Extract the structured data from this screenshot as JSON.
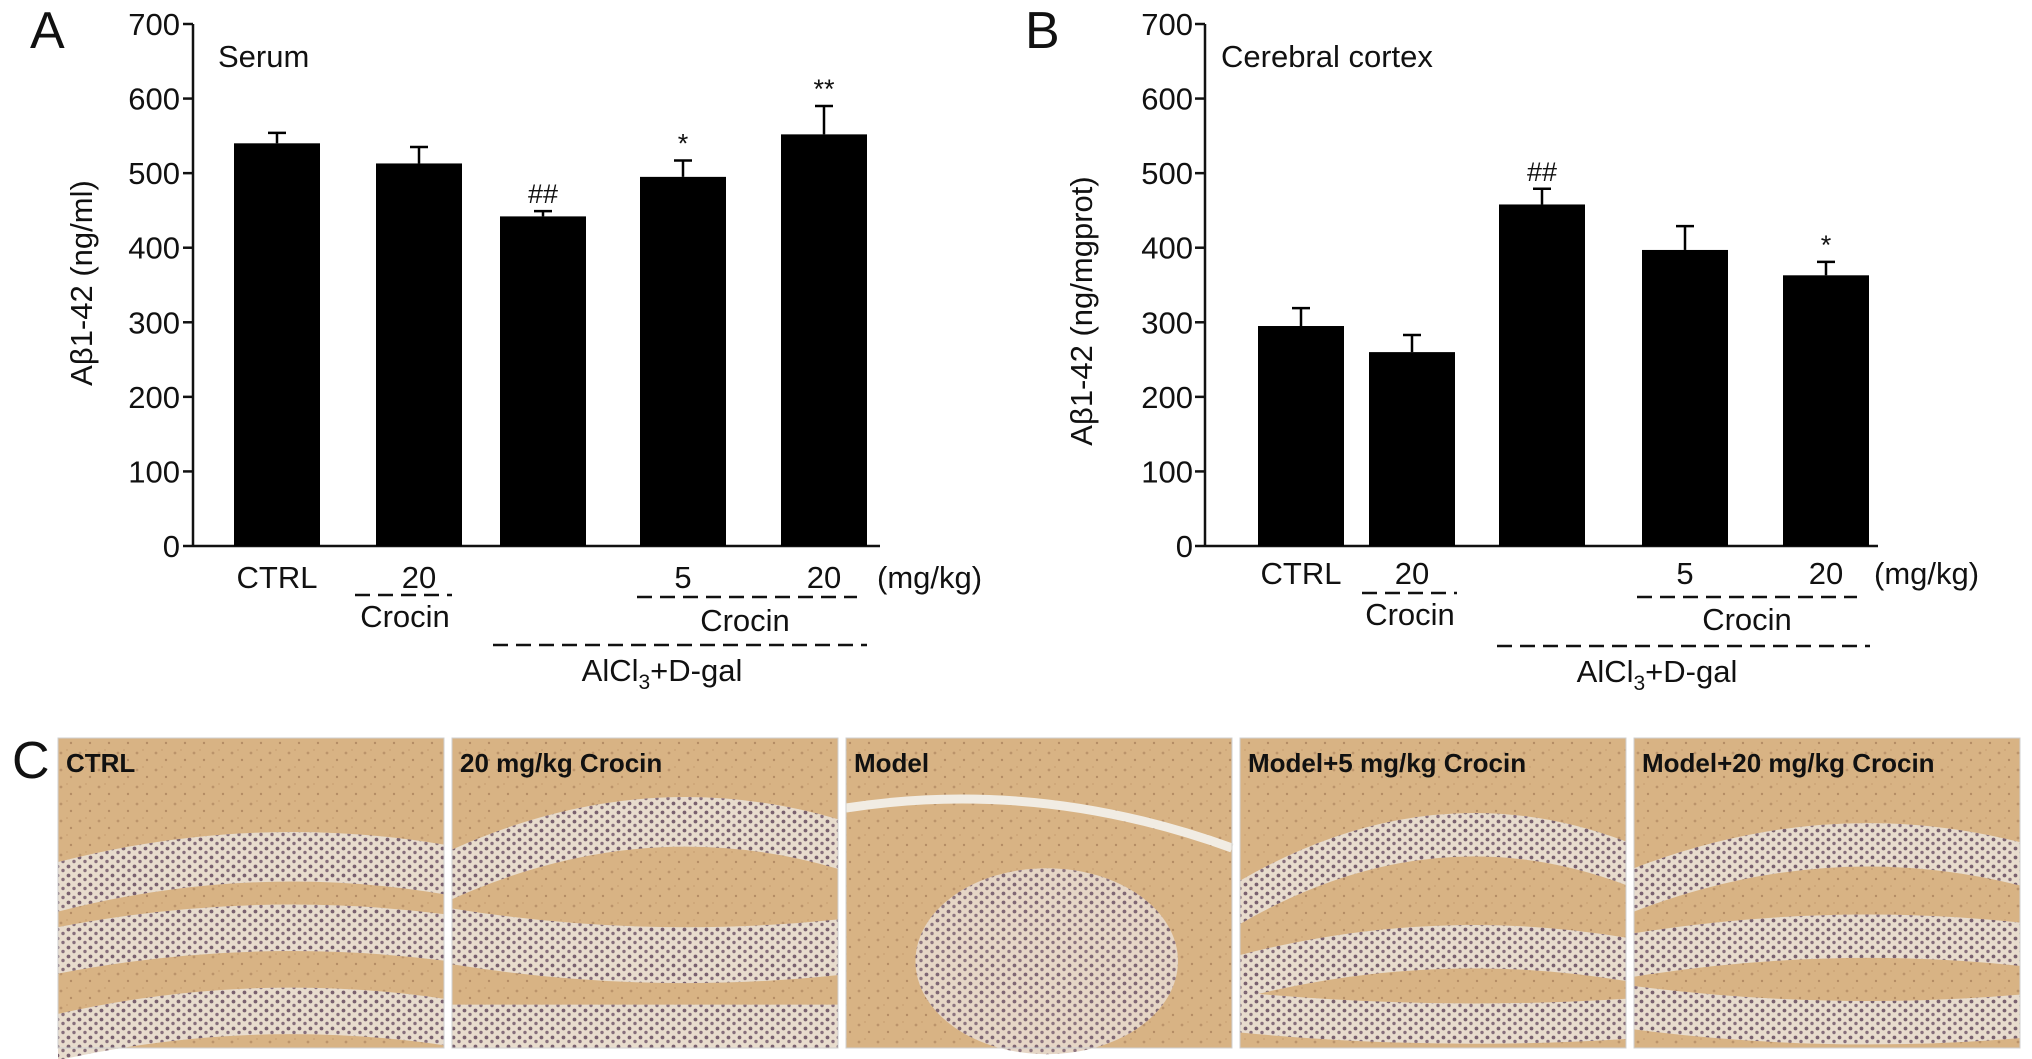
{
  "panel_letters": [
    "A",
    "B",
    "C"
  ],
  "chart_data": [
    {
      "type": "bar",
      "panel": "A",
      "title": "Serum",
      "ylabel": "Aβ1-42 (ng/ml)",
      "ylim": [
        0,
        700
      ],
      "yticks": [
        0,
        100,
        200,
        300,
        400,
        500,
        600,
        700
      ],
      "categories": [
        "CTRL",
        "20",
        "",
        "5",
        "20"
      ],
      "unit_label": "(mg/kg)",
      "values": [
        540,
        513,
        442,
        495,
        552
      ],
      "errors": [
        14,
        22,
        7,
        22,
        38
      ],
      "significance": [
        "",
        "",
        "##",
        "*",
        "**"
      ],
      "group_labels": {
        "crocin_alone": "Crocin",
        "crocin_model": "Crocin",
        "model": "AlCl",
        "model_sub": "3",
        "model_suffix": "+D-gal"
      },
      "grid": false
    },
    {
      "type": "bar",
      "panel": "B",
      "title": "Cerebral cortex",
      "ylabel": "Aβ1-42 (ng/mgprot)",
      "ylim": [
        0,
        700
      ],
      "yticks": [
        0,
        100,
        200,
        300,
        400,
        500,
        600,
        700
      ],
      "categories": [
        "CTRL",
        "20",
        "",
        "5",
        "20"
      ],
      "unit_label": "(mg/kg)",
      "values": [
        295,
        260,
        458,
        397,
        363
      ],
      "errors": [
        24,
        23,
        21,
        32,
        18
      ],
      "significance": [
        "",
        "",
        "##",
        "",
        "*"
      ],
      "group_labels": {
        "crocin_alone": "Crocin",
        "crocin_model": "Crocin",
        "model": "AlCl",
        "model_sub": "3",
        "model_suffix": "+D-gal"
      },
      "grid": false
    }
  ],
  "micrographs": {
    "labels": [
      "CTRL",
      "20 mg/kg Crocin",
      "Model",
      "Model+5 mg/kg Crocin",
      "Model+20 mg/kg Crocin"
    ],
    "colors": {
      "stain": "#d8b384",
      "nuclei": "#6b4e63",
      "cleft": "#f1ece3"
    }
  }
}
